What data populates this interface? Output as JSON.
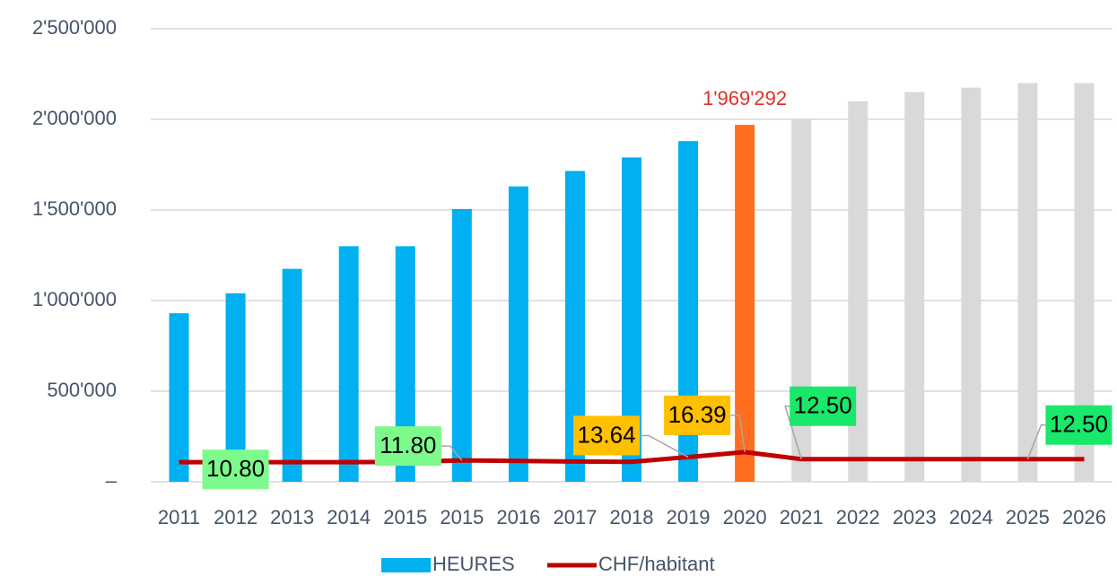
{
  "chart_data": {
    "type": "bar-line",
    "categories": [
      "2011",
      "2012",
      "2013",
      "2014",
      "2015",
      "2015",
      "2016",
      "2017",
      "2018",
      "2019",
      "2020",
      "2021",
      "2022",
      "2023",
      "2024",
      "2025",
      "2026"
    ],
    "series": [
      {
        "name": "HEURES",
        "color": "#00b0f0",
        "type": "bar",
        "colors": [
          "#00b0f0",
          "#00b0f0",
          "#00b0f0",
          "#00b0f0",
          "#00b0f0",
          "#00b0f0",
          "#00b0f0",
          "#00b0f0",
          "#00b0f0",
          "#00b0f0",
          "#ff6d1f",
          "#d9d9d9",
          "#d9d9d9",
          "#d9d9d9",
          "#d9d9d9",
          "#d9d9d9",
          "#d9d9d9"
        ],
        "values": [
          930000,
          1040000,
          1175000,
          1300000,
          1300000,
          1505000,
          1630000,
          1715000,
          1790000,
          1880000,
          1969292,
          2000000,
          2100000,
          2150000,
          2175000,
          2200000,
          2200000
        ],
        "value_labels": [
          null,
          null,
          null,
          null,
          null,
          null,
          null,
          null,
          null,
          null,
          "1'969'292",
          null,
          null,
          null,
          null,
          null,
          null
        ],
        "label_color": "#e0302a"
      },
      {
        "name": "CHF/habitant",
        "color": "#c00000",
        "type": "line",
        "axis": "y2",
        "values": [
          10.8,
          10.8,
          10.8,
          10.8,
          11.0,
          11.8,
          11.5,
          11.2,
          11.0,
          13.64,
          16.39,
          12.5,
          12.5,
          12.5,
          12.5,
          12.5,
          12.5
        ],
        "value_labels": [
          null,
          "10.80",
          null,
          null,
          null,
          "11.80",
          null,
          null,
          null,
          "13.64",
          "16.39",
          "12.50",
          null,
          null,
          null,
          "12.50",
          null
        ],
        "label_colors": [
          null,
          "#7dfa8c",
          null,
          null,
          null,
          "#7dfa8c",
          null,
          null,
          null,
          "#ffc000",
          "#ffc000",
          "#19e86a",
          null,
          null,
          null,
          "#19e86a",
          null
        ]
      }
    ],
    "ylim": [
      0,
      2500000
    ],
    "yticks": [
      {
        "value": 0,
        "label": "–"
      },
      {
        "value": 500000,
        "label": "500'000"
      },
      {
        "value": 1000000,
        "label": "1'000'000"
      },
      {
        "value": 1500000,
        "label": "1'500'000"
      },
      {
        "value": 2000000,
        "label": "2'000'000"
      },
      {
        "value": 2500000,
        "label": "2'500'000"
      }
    ],
    "y2lim": [
      0,
      250
    ],
    "grid": true,
    "legend": "bottom"
  }
}
